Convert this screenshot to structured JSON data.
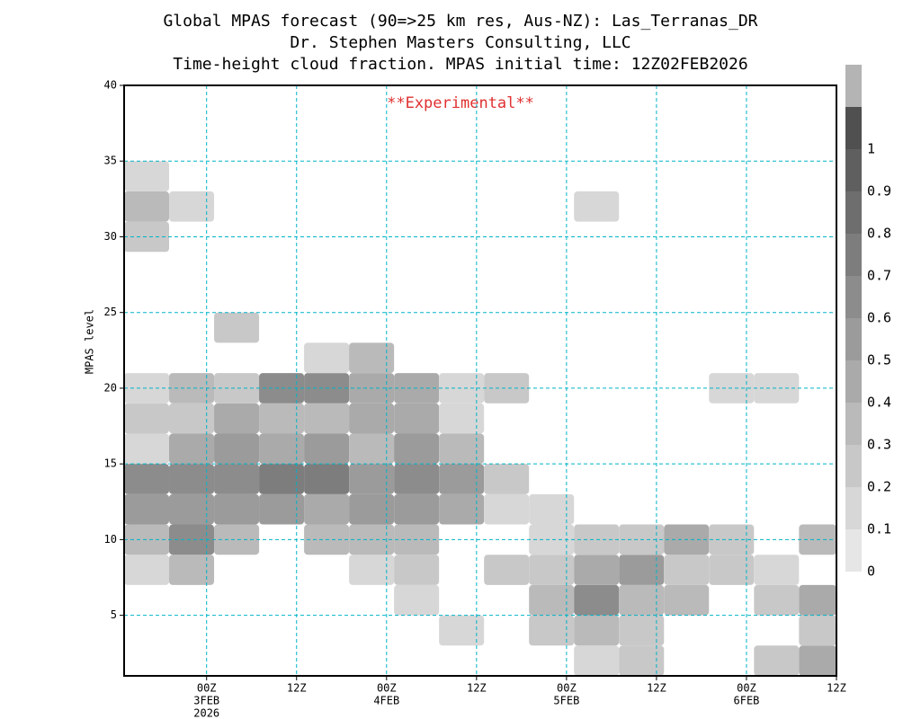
{
  "chart_data": {
    "type": "heatmap",
    "title": "Global MPAS forecast (90=>25 km res, Aus-NZ): Las_Terranas_DR",
    "subtitle": "Dr. Stephen Masters Consulting, LLC",
    "subtitle2": "Time-height cloud fraction.   MPAS initial time: 12Z02FEB2026",
    "annotation": "**Experimental**",
    "y_label": "MPAS level",
    "xlim": [
      1,
      96
    ],
    "xticks": [
      {
        "value": 12,
        "label": "00Z",
        "date": "3FEB",
        "year": "2026"
      },
      {
        "value": 24,
        "label": "12Z"
      },
      {
        "value": 36,
        "label": "00Z",
        "date": "4FEB"
      },
      {
        "value": 48,
        "label": "12Z"
      },
      {
        "value": 60,
        "label": "00Z",
        "date": "5FEB"
      },
      {
        "value": 72,
        "label": "12Z"
      },
      {
        "value": 84,
        "label": "00Z",
        "date": "6FEB"
      },
      {
        "value": 96,
        "label": "12Z"
      }
    ],
    "ylim": [
      1,
      40
    ],
    "yticks": [
      5,
      10,
      15,
      20,
      25,
      30,
      35,
      40
    ],
    "grid": true,
    "grid_color": "#00b4c8",
    "x": [
      4,
      10,
      16,
      22,
      28,
      34,
      40,
      46,
      52,
      58,
      64,
      70,
      76,
      82,
      88,
      94
    ],
    "y": [
      2,
      4,
      6,
      8,
      10,
      12,
      14,
      16,
      18,
      20,
      22,
      24,
      26,
      28,
      30,
      32,
      34,
      36,
      38
    ],
    "z": [
      [
        0,
        0,
        0,
        0,
        0,
        0,
        0,
        0,
        0,
        0,
        0.1,
        0.2,
        0,
        0,
        0.2,
        0.4
      ],
      [
        0,
        0,
        0,
        0,
        0,
        0,
        0,
        0.1,
        0,
        0.2,
        0.3,
        0.2,
        0,
        0,
        0,
        0.2
      ],
      [
        0,
        0,
        0,
        0,
        0,
        0,
        0.1,
        0,
        0,
        0.3,
        0.6,
        0.3,
        0.3,
        0,
        0.2,
        0.4
      ],
      [
        0.1,
        0.3,
        0,
        0,
        0,
        0.1,
        0.2,
        0,
        0.2,
        0.2,
        0.4,
        0.5,
        0.2,
        0.2,
        0.1,
        0
      ],
      [
        0.3,
        0.6,
        0.3,
        0,
        0.3,
        0.3,
        0.3,
        0,
        0,
        0.1,
        0.2,
        0.2,
        0.4,
        0.2,
        0,
        0.3
      ],
      [
        0.5,
        0.5,
        0.5,
        0.5,
        0.4,
        0.5,
        0.5,
        0.4,
        0.1,
        0.1,
        0,
        0,
        0,
        0,
        0,
        0
      ],
      [
        0.6,
        0.6,
        0.6,
        0.7,
        0.7,
        0.5,
        0.6,
        0.5,
        0.2,
        0,
        0,
        0,
        0,
        0,
        0,
        0
      ],
      [
        0.1,
        0.4,
        0.5,
        0.4,
        0.5,
        0.3,
        0.5,
        0.3,
        0,
        0,
        0,
        0,
        0,
        0,
        0,
        0
      ],
      [
        0.2,
        0.2,
        0.4,
        0.3,
        0.3,
        0.4,
        0.4,
        0.1,
        0,
        0,
        0,
        0,
        0,
        0,
        0,
        0
      ],
      [
        0.1,
        0.3,
        0.2,
        0.6,
        0.6,
        0.4,
        0.4,
        0.1,
        0.2,
        0,
        0,
        0,
        0,
        0.15,
        0.1,
        0
      ],
      [
        0,
        0,
        0,
        0,
        0.1,
        0.3,
        0,
        0,
        0,
        0,
        0,
        0,
        0,
        0,
        0,
        0
      ],
      [
        0,
        0,
        0.2,
        0,
        0,
        0,
        0,
        0,
        0,
        0,
        0,
        0,
        0,
        0,
        0,
        0
      ],
      [
        0,
        0,
        0,
        0,
        0,
        0,
        0,
        0,
        0,
        0,
        0,
        0,
        0,
        0,
        0,
        0
      ],
      [
        0,
        0,
        0,
        0,
        0,
        0,
        0,
        0,
        0,
        0,
        0,
        0,
        0,
        0,
        0,
        0
      ],
      [
        0.2,
        0,
        0,
        0,
        0,
        0,
        0,
        0,
        0,
        0,
        0,
        0,
        0,
        0,
        0,
        0
      ],
      [
        0.3,
        0.15,
        0,
        0,
        0,
        0,
        0,
        0,
        0,
        0,
        0.15,
        0,
        0,
        0,
        0,
        0
      ],
      [
        0.15,
        0,
        0,
        0,
        0,
        0,
        0,
        0,
        0,
        0,
        0,
        0,
        0,
        0,
        0,
        0
      ],
      [
        0,
        0,
        0,
        0,
        0,
        0,
        0,
        0,
        0,
        0,
        0,
        0,
        0,
        0,
        0,
        0
      ],
      [
        0,
        0,
        0,
        0,
        0,
        0,
        0,
        0,
        0,
        0,
        0,
        0,
        0,
        0,
        0,
        0
      ]
    ],
    "colorbar": {
      "levels": [
        0,
        0.1,
        0.2,
        0.3,
        0.4,
        0.5,
        0.6,
        0.7,
        0.8,
        0.9,
        1
      ],
      "colors": [
        "#e6e6e6",
        "#d7d7d7",
        "#c8c8c8",
        "#bababa",
        "#aaaaaa",
        "#9b9b9b",
        "#8c8c8c",
        "#7d7d7d",
        "#6e6e6e",
        "#5f5f5f",
        "#505050"
      ],
      "over_color": "#b4b4b4"
    }
  }
}
